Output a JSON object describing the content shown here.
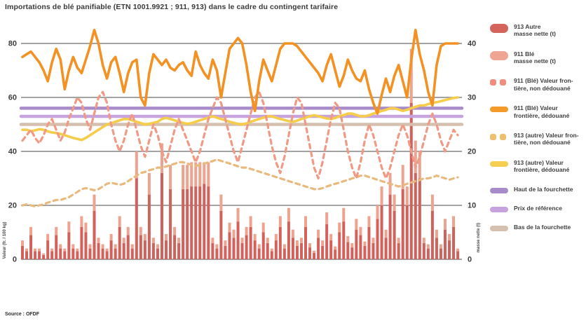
{
  "title": "Importations de blé panifiable (ETN 1001.9921 ; 911, 913) dans le cadre du contingent tarifaire",
  "source": "Source : OFDF",
  "axes": {
    "left_ticks": [
      0,
      20,
      40,
      60,
      80
    ],
    "right_ticks": [
      0,
      10,
      20,
      30,
      40
    ],
    "left_label": "Valeur (fr. / 100 kg)",
    "right_label": "masse nette (t)",
    "grid_color": "#a3a3a3",
    "tick_color": "#3d3d3d"
  },
  "legend": {
    "items": [
      {
        "swatch": "bar",
        "color": "#d4645c",
        "lines": [
          "913 Autre",
          "masse nette (t)"
        ]
      },
      {
        "swatch": "bar",
        "color": "#efa593",
        "lines": [
          "911 Blé",
          "masse nette (t)"
        ]
      },
      {
        "swatch": "dash",
        "color": "#f08d7e",
        "lines": [
          "911 (Blé) Valeur fron-",
          "tière, non dédouané"
        ]
      },
      {
        "swatch": "line",
        "color": "#f39a2b",
        "lines": [
          "911 (Blé) Valeur",
          "frontière, dédouané"
        ]
      },
      {
        "swatch": "dash",
        "color": "#eec06e",
        "lines": [
          "913 (autre) Valeur fron-",
          "tière, non dédouané"
        ]
      },
      {
        "swatch": "line",
        "color": "#f6ce52",
        "lines": [
          "913 (autre) Valeur",
          "frontière, dédouané"
        ]
      },
      {
        "swatch": "line",
        "color": "#a88cc9",
        "lines": [
          "Haut de la fourchette"
        ]
      },
      {
        "swatch": "line",
        "color": "#c6a3dc",
        "lines": [
          "Prix de référence"
        ]
      },
      {
        "swatch": "line",
        "color": "#d5c0af",
        "lines": [
          "Bas de la fourchette"
        ]
      }
    ]
  },
  "chart_data": {
    "type": "mixed-bar-line",
    "n_points": 104,
    "x_unit": "semaines (non étiquetées)",
    "left_axis_range": [
      0,
      80
    ],
    "right_axis_range": [
      0,
      40
    ],
    "bands": [
      {
        "name": "Haut de la fourchette",
        "value": 56,
        "color": "#a88cc9"
      },
      {
        "name": "Prix de référence",
        "value": 53,
        "color": "#c6a3dc"
      },
      {
        "name": "Bas de la fourchette",
        "value": 50,
        "color": "#d5c0af"
      }
    ],
    "bar_series": [
      {
        "name": "913 Autre masse nette (t)",
        "color": "#d2615c",
        "axis": "right",
        "values": [
          2.5,
          1.5,
          4.5,
          1.5,
          1.5,
          0.8,
          3.5,
          1.5,
          4.5,
          2,
          1.5,
          5,
          2,
          1.5,
          6,
          5,
          2,
          9,
          3,
          2,
          1.5,
          3.5,
          2,
          6,
          3,
          4.5,
          2,
          15,
          4.5,
          3.5,
          12,
          3,
          2,
          16,
          3.5,
          13,
          4.5,
          3,
          13,
          13,
          13.5,
          13.5,
          13.5,
          14,
          13.5,
          3,
          2,
          9,
          2.5,
          5,
          4,
          7,
          3,
          4.5,
          6,
          3.5,
          2,
          5,
          3,
          1.5,
          3.5,
          6,
          2,
          7,
          4,
          2.5,
          3,
          6,
          2.2,
          1.2,
          4,
          2.5,
          6.5,
          3.5,
          1.8,
          5,
          7,
          3.2,
          2.2,
          5.5,
          4.5,
          2.5,
          6,
          3,
          7.5,
          10,
          4,
          12,
          9,
          3,
          13,
          10,
          29,
          16,
          15,
          3,
          2,
          9,
          4,
          2,
          5.5,
          3.5,
          6,
          1.5
        ]
      },
      {
        "name": "911 Blé masse nette (t)",
        "color": "#eda38f",
        "axis": "right",
        "values": [
          1,
          0.5,
          1.5,
          0.5,
          0.5,
          0.3,
          1.2,
          0.5,
          1.5,
          0.8,
          0.5,
          2,
          0.8,
          0.5,
          2,
          1.8,
          0.8,
          3,
          1,
          0.8,
          0.5,
          1.2,
          0.8,
          2,
          1,
          1.5,
          0.8,
          5,
          1.5,
          1.2,
          4,
          1,
          0.8,
          5.5,
          1.2,
          4.5,
          1.5,
          1,
          4.5,
          4.5,
          4.5,
          4.5,
          4.5,
          4,
          4.5,
          1,
          0.8,
          3,
          1,
          1.8,
          1.5,
          2.5,
          1,
          1.5,
          2,
          1.2,
          0.8,
          1.8,
          1,
          0.5,
          1.2,
          2,
          0.8,
          2.5,
          1.5,
          1,
          1,
          2,
          0.8,
          0.4,
          1.5,
          1,
          2.2,
          1.2,
          0.6,
          1.8,
          2.5,
          1.1,
          0.8,
          2,
          1.5,
          0.8,
          2,
          1,
          2.5,
          3.5,
          1.5,
          4,
          3,
          1,
          4.5,
          3.5,
          10,
          6,
          5,
          1,
          0.8,
          3,
          1.5,
          0.8,
          2,
          1.2,
          2,
          0.5
        ]
      }
    ],
    "series": [
      {
        "name": "913 (autre) Valeur frontière, non dédouané",
        "style": "dashed",
        "color": "#e9b97d",
        "axis": "left",
        "values": [
          20,
          20.4,
          20,
          19.6,
          20,
          20.4,
          21,
          21.5,
          22,
          22,
          22.5,
          23,
          24,
          25,
          26,
          26.4,
          26,
          25.6,
          26,
          27,
          28,
          28.4,
          28,
          27.6,
          28,
          29,
          30,
          31,
          32,
          32.4,
          33,
          33.4,
          34,
          34,
          34.4,
          35,
          35.4,
          36,
          36,
          35.5,
          35,
          34.6,
          35,
          35.4,
          36,
          36.4,
          37,
          36.5,
          36,
          35.5,
          35,
          34.5,
          34,
          34,
          33.5,
          33,
          32.5,
          32,
          31.5,
          31,
          30.5,
          30,
          29.5,
          29,
          28.5,
          28,
          27.5,
          27,
          26.5,
          26,
          26,
          26.4,
          27,
          27.5,
          28,
          28.4,
          29,
          29.4,
          30,
          30.4,
          31,
          31,
          30.5,
          30,
          29.5,
          29,
          28.5,
          28,
          27.5,
          27,
          27.4,
          28,
          28.5,
          29,
          29.4,
          30,
          30,
          30.4,
          31,
          30.5,
          30,
          29.5,
          30,
          30.4
        ]
      },
      {
        "name": "913 (autre) Valeur frontière, dédouané",
        "style": "solid",
        "color": "#f6cd4a",
        "axis": "left",
        "values": [
          48,
          48,
          47.5,
          47.8,
          48.2,
          48,
          47.4,
          47,
          46.8,
          46.5,
          46,
          45.5,
          45,
          44.6,
          44.2,
          45,
          46,
          47,
          48,
          49,
          50,
          50.4,
          51,
          51.5,
          52,
          52,
          51.5,
          51,
          50.5,
          50,
          50.2,
          50.6,
          51,
          52,
          52.4,
          52,
          51.5,
          51,
          50.6,
          50.2,
          50.5,
          51,
          51.5,
          52,
          52.5,
          53,
          52.5,
          52,
          51.5,
          51,
          50.6,
          50.2,
          50,
          50.4,
          51,
          51.5,
          52,
          52.5,
          53,
          53,
          52.5,
          52,
          51.6,
          51.2,
          51,
          51.4,
          52,
          52.5,
          53,
          53.4,
          53,
          52.6,
          52.2,
          52,
          52.4,
          53,
          53.4,
          54,
          54,
          53.5,
          53,
          53,
          53.4,
          54,
          54.5,
          55,
          55.4,
          56,
          56,
          55.5,
          55,
          55.4,
          56,
          56.5,
          57,
          57,
          57.5,
          58,
          58.2,
          58.6,
          59,
          59.4,
          59.8,
          60
        ]
      },
      {
        "name": "911 (Blé) Valeur frontière, non dédouané",
        "style": "dashed",
        "color": "#f09a86",
        "axis": "left",
        "values": [
          44,
          46,
          48,
          45,
          43,
          46,
          50,
          52,
          48,
          44,
          47,
          52,
          56,
          60,
          58,
          52,
          48,
          54,
          60,
          62,
          58,
          50,
          44,
          40,
          44,
          50,
          54,
          48,
          42,
          38,
          44,
          50,
          46,
          40,
          36,
          42,
          48,
          52,
          48,
          44,
          40,
          36,
          40,
          46,
          52,
          56,
          60,
          58,
          52,
          46,
          40,
          36,
          42,
          48,
          54,
          60,
          62,
          58,
          50,
          42,
          36,
          32,
          38,
          46,
          54,
          60,
          58,
          50,
          42,
          34,
          30,
          36,
          44,
          52,
          58,
          56,
          48,
          40,
          34,
          30,
          36,
          44,
          50,
          46,
          40,
          34,
          30,
          34,
          40,
          46,
          50,
          46,
          40,
          34,
          38,
          44,
          50,
          54,
          50,
          44,
          40,
          44,
          48,
          46
        ]
      },
      {
        "name": "911 (Blé) Valeur frontière, dédouané",
        "style": "solid",
        "color": "#f39122",
        "axis": "left",
        "values": [
          75,
          76,
          77,
          75,
          73,
          70,
          66,
          73,
          78,
          74,
          63,
          70,
          75,
          71,
          69,
          74,
          79,
          85,
          80,
          72,
          67,
          73,
          75,
          69,
          62,
          69,
          73,
          74,
          60,
          57,
          69,
          76,
          74,
          72,
          74,
          71,
          70,
          72,
          73,
          70,
          68,
          77,
          72,
          69,
          67,
          74,
          70,
          60,
          69,
          78,
          80,
          82,
          80,
          72,
          62,
          55,
          66,
          74,
          70,
          66,
          72,
          78,
          80,
          80,
          80,
          79,
          77,
          75,
          73,
          71,
          69,
          66,
          72,
          76,
          70,
          64,
          68,
          74,
          70,
          67,
          66,
          70,
          63,
          58,
          54,
          61,
          67,
          62,
          68,
          72,
          66,
          60,
          74,
          85,
          76,
          70,
          62,
          57,
          72,
          79,
          80,
          80,
          80,
          80
        ]
      }
    ]
  }
}
